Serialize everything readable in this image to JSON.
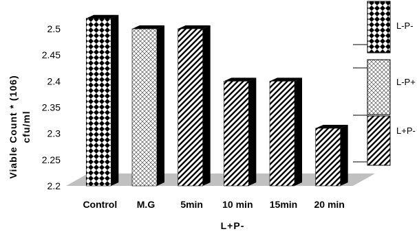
{
  "chart_data": {
    "type": "bar",
    "categories": [
      "Control",
      "M.G",
      "5min",
      "10 min",
      "15min",
      "20 min"
    ],
    "values": [
      2.52,
      2.5,
      2.5,
      2.4,
      2.4,
      2.31
    ],
    "patterns": [
      "L-P-",
      "L-P+",
      "L+P-",
      "L+P-",
      "L+P-",
      "L+P-"
    ],
    "ylim": [
      2.2,
      2.5
    ],
    "yticks": [
      "2.2",
      "2.25",
      "2.3",
      "2.35",
      "2.4",
      "2.45",
      "2.5"
    ],
    "ylabel_line1": "Viable Count * (106)",
    "ylabel_line2": "cfu/ml",
    "xlabel": "L+P-",
    "legend": [
      "L-P-",
      "L-P+",
      "L+P-"
    ],
    "legend_placement": "right",
    "grid": false,
    "colors": {
      "floor": "#c0c0c0",
      "bar_side": "#000000",
      "bar_fg": "#000000",
      "bar_bg": "#ffffff"
    }
  }
}
